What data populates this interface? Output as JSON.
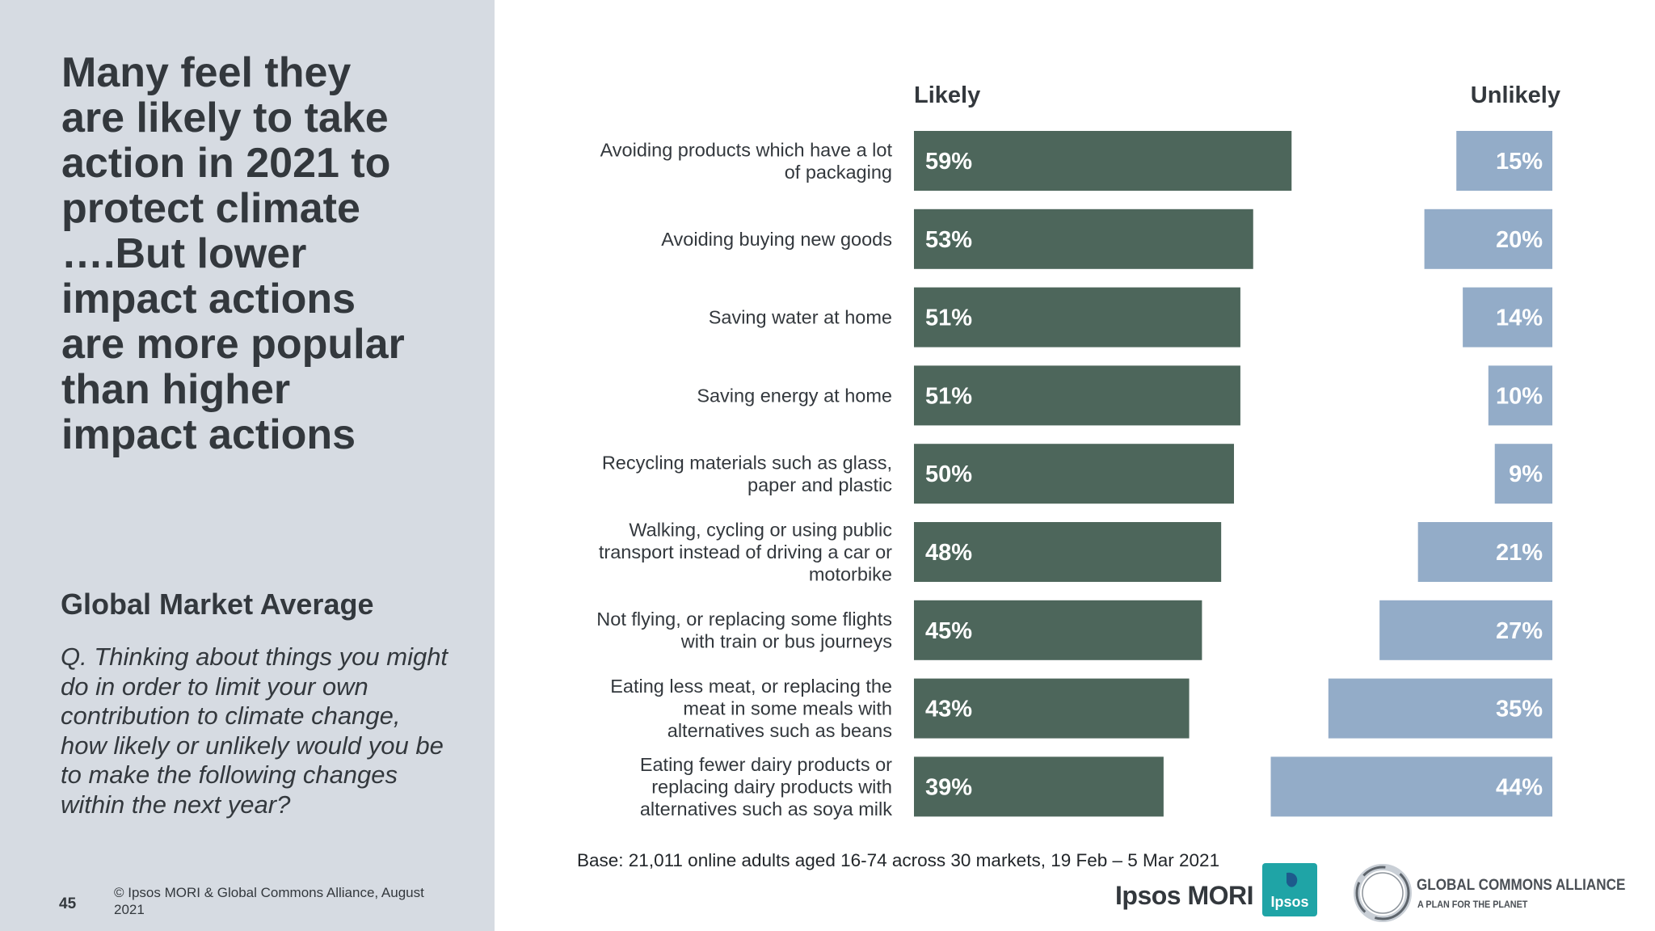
{
  "headline": "Many feel they\nare likely to take\naction in 2021 to\nprotect climate\n….But lower\nimpact actions\nare more popular\nthan higher\nimpact actions",
  "subhead": "Global Market Average",
  "question": "Q. Thinking about things you might do in order to limit your own contribution to climate change, how likely or unlikely would you be to make the following changes within the next year?",
  "page_number": "45",
  "copyright": "© Ipsos MORI & Global Commons Alliance, August 2021",
  "base_note": "Base: 21,011 online adults aged 16-74 across 30 markets,  19 Feb – 5 Mar 2021",
  "logos": {
    "ipsos_mori": "Ipsos MORI",
    "ipsos_badge": "Ipsos",
    "gca_name": "GLOBAL COMMONS ALLIANCE",
    "gca_tagline": "A PLAN FOR THE PLANET"
  },
  "colors": {
    "likely": "#4d665b",
    "unlikely": "#93acc8",
    "panel": "#d6dbe2",
    "text": "#33383d"
  },
  "chart_data": {
    "type": "bar",
    "orientation": "horizontal",
    "categories": [
      [
        "Avoiding products which have a lot",
        "of packaging"
      ],
      [
        "Avoiding buying new goods"
      ],
      [
        "Saving water at home"
      ],
      [
        "Saving energy at home"
      ],
      [
        "Recycling materials such as glass,",
        "paper and plastic"
      ],
      [
        "Walking, cycling or using public",
        "transport instead of driving a car or",
        "motorbike"
      ],
      [
        "Not flying, or replacing some flights",
        "with train or bus journeys"
      ],
      [
        "Eating less meat, or replacing the",
        "meat in some meals with",
        "alternatives such as beans"
      ],
      [
        "Eating fewer dairy products or",
        "replacing dairy products with",
        "alternatives such as soya milk"
      ]
    ],
    "series": [
      {
        "name": "Likely",
        "values": [
          59,
          53,
          51,
          51,
          50,
          48,
          45,
          43,
          39
        ],
        "labels": [
          "59%",
          "53%",
          "51%",
          "51%",
          "50%",
          "48%",
          "45%",
          "43%",
          "39%"
        ]
      },
      {
        "name": "Unlikely",
        "values": [
          15,
          20,
          14,
          10,
          9,
          21,
          27,
          35,
          44
        ],
        "labels": [
          "15%",
          "20%",
          "14%",
          "10%",
          "9%",
          "21%",
          "27%",
          "35%",
          "44%"
        ]
      }
    ],
    "unit": "%"
  }
}
